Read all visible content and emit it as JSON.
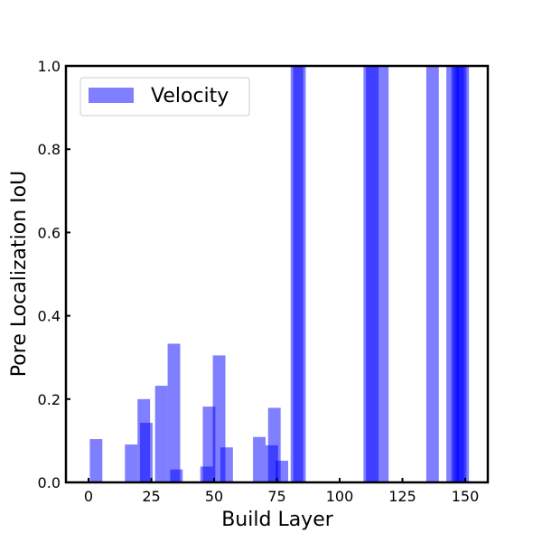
{
  "chart_data": {
    "type": "bar",
    "xlabel": "Build Layer",
    "ylabel": "Pore Localization IoU",
    "xlim": [
      -9,
      159
    ],
    "ylim": [
      0,
      1
    ],
    "xticks": [
      0,
      25,
      50,
      75,
      100,
      125,
      150
    ],
    "yticks": [
      0.0,
      0.2,
      0.4,
      0.6,
      0.8,
      1.0
    ],
    "ytick_labels": [
      "0.0",
      "0.2",
      "0.4",
      "0.6",
      "0.8",
      "1.0"
    ],
    "legend_position": "top-left",
    "bar_width": 5,
    "series": [
      {
        "name": "Velocity",
        "color": "#0000ff",
        "opacity": 0.5,
        "x": [
          3,
          17,
          22,
          23,
          29,
          34,
          35,
          47,
          48,
          52,
          55,
          68,
          73,
          74,
          77,
          83,
          84,
          112,
          113,
          117,
          137,
          145,
          147,
          148,
          149
        ],
        "values": [
          0.104,
          0.091,
          0.2,
          0.143,
          0.232,
          0.333,
          0.031,
          0.038,
          0.182,
          0.305,
          0.084,
          0.109,
          0.089,
          0.179,
          0.052,
          1.0,
          1.0,
          1.0,
          1.0,
          1.0,
          1.0,
          1.0,
          1.0,
          1.0,
          1.0
        ]
      }
    ]
  }
}
